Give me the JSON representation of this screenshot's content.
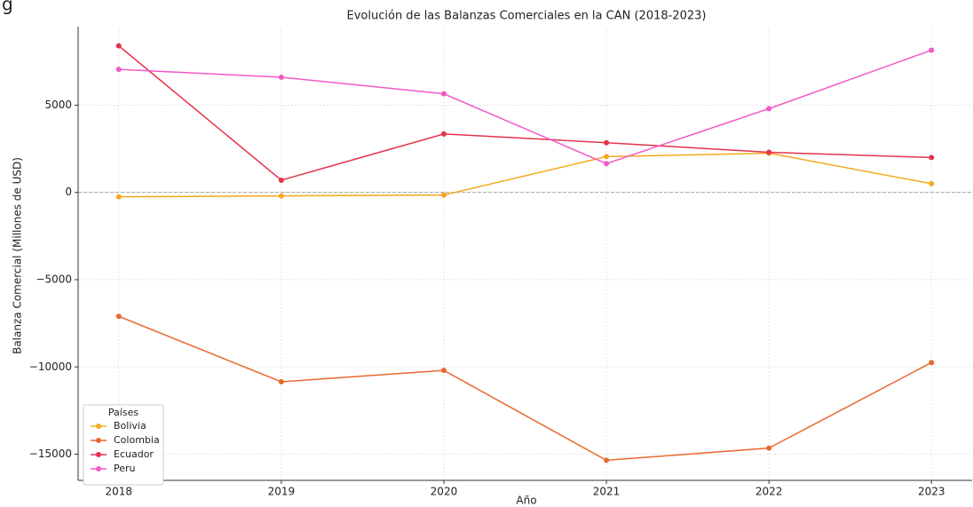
{
  "corner_text": "g",
  "chart_data": {
    "type": "line",
    "title": "Evolución de las Balanzas Comerciales en la CAN (2018-2023)",
    "x_label": "Año",
    "y_label": "Balanza Comercial (Millones de USD)",
    "x": [
      2018,
      2019,
      2020,
      2021,
      2022,
      2023
    ],
    "xlim": [
      2017.75,
      2023.25
    ],
    "xticks": [
      2018,
      2019,
      2020,
      2021,
      2022,
      2023
    ],
    "ylim": [
      -16500,
      9500
    ],
    "yticks": [
      {
        "value": -15000,
        "label": "−15000"
      },
      {
        "value": -10000,
        "label": "−10000"
      },
      {
        "value": -5000,
        "label": "−5000"
      },
      0,
      5000
    ],
    "grid": true,
    "reference_line": 0,
    "legend": {
      "title": "Países",
      "position": "lower left"
    },
    "series": [
      {
        "name": "Bolivia",
        "color": "#f5a81d",
        "values": [
          -250,
          -200,
          -150,
          2050,
          2250,
          500
        ]
      },
      {
        "name": "Colombia",
        "color": "#e8692e",
        "values": [
          -7100,
          -10850,
          -10200,
          -15350,
          -14650,
          -9750
        ]
      },
      {
        "name": "Ecuador",
        "color": "#e5334b",
        "values": [
          8400,
          700,
          3350,
          2850,
          2300,
          2000
        ]
      },
      {
        "name": "Peru",
        "color": "#f059c8",
        "values": [
          7050,
          6600,
          5650,
          1650,
          4800,
          8150
        ]
      }
    ]
  }
}
